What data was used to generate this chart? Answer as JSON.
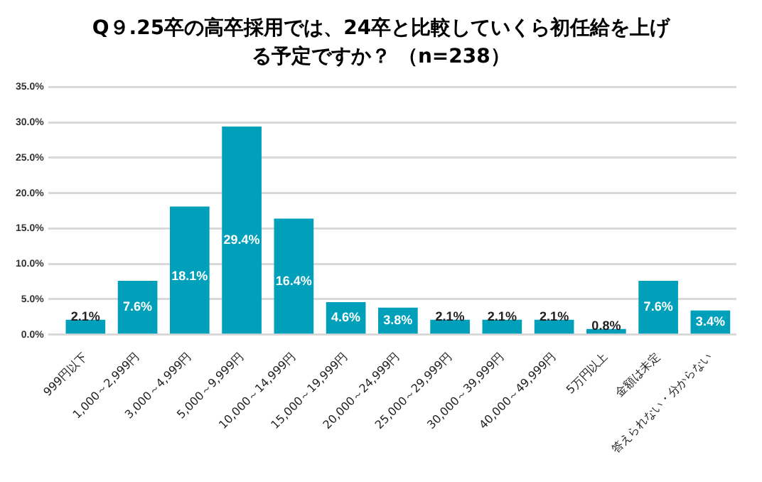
{
  "chart_data": {
    "type": "bar",
    "title": "Q９.25卒の高卒採用では、24卒と比較していくら初任給を上げる予定ですか？ （n=238）",
    "categories": [
      "999円以下",
      "1,000～2,999円",
      "3,000～4,999円",
      "5,000～9,999円",
      "10,000～14,999円",
      "15,000～19,999円",
      "20,000～24,999円",
      "25,000～29,999円",
      "30,000～39,999円",
      "40,000～49,999円",
      "5万円以上",
      "金額は未定",
      "答えられない・分からない"
    ],
    "values": [
      2.1,
      7.6,
      18.1,
      29.4,
      16.4,
      4.6,
      3.8,
      2.1,
      2.1,
      2.1,
      0.8,
      7.6,
      3.4
    ],
    "value_labels": [
      "2.1%",
      "7.6%",
      "18.1%",
      "29.4%",
      "16.4%",
      "4.6%",
      "3.8%",
      "2.1%",
      "2.1%",
      "2.1%",
      "0.8%",
      "7.6%",
      "3.4%"
    ],
    "color": "#009fba",
    "ylim": [
      0,
      35
    ],
    "yticks": [
      {
        "value": 0,
        "label": "0.0%"
      },
      {
        "value": 5,
        "label": "5.0%"
      },
      {
        "value": 10,
        "label": "10.0%"
      },
      {
        "value": 15,
        "label": "15.0%"
      },
      {
        "value": 20,
        "label": "20.0%"
      },
      {
        "value": 25,
        "label": "25.0%"
      },
      {
        "value": 30,
        "label": "30.0%"
      },
      {
        "value": 35,
        "label": "35.0%"
      }
    ],
    "grid": "y",
    "legend": false
  }
}
